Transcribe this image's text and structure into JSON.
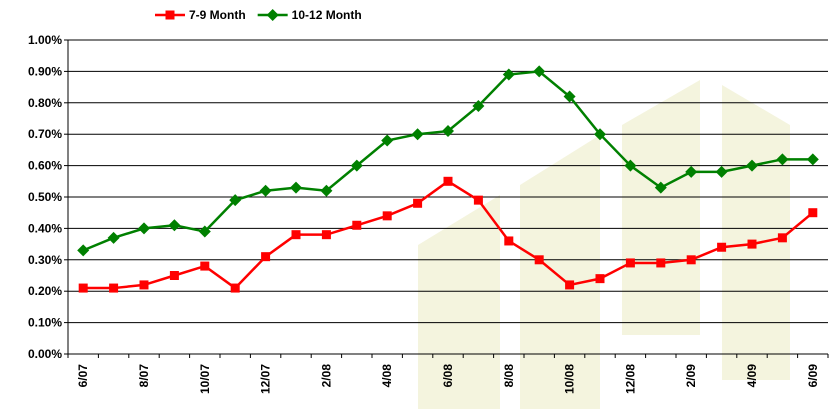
{
  "chart_data": {
    "type": "line",
    "categories": [
      "6/07",
      null,
      "8/07",
      null,
      "10/07",
      null,
      "12/07",
      null,
      "2/08",
      null,
      "4/08",
      null,
      "6/08",
      null,
      "8/08",
      null,
      "10/08",
      null,
      "12/08",
      null,
      "2/09",
      null,
      "4/09",
      null,
      "6/09"
    ],
    "series": [
      {
        "name": "7-9 Month",
        "color": "#ff0000",
        "marker": "square",
        "values": [
          0.21,
          0.21,
          0.22,
          0.25,
          0.28,
          0.21,
          0.31,
          0.38,
          0.38,
          0.41,
          0.44,
          0.48,
          0.55,
          0.49,
          0.36,
          0.3,
          0.22,
          0.24,
          0.29,
          0.29,
          0.3,
          0.34,
          0.35,
          0.37,
          0.45
        ]
      },
      {
        "name": "10-12 Month",
        "color": "#008000",
        "marker": "diamond",
        "values": [
          0.33,
          0.37,
          0.4,
          0.41,
          0.39,
          0.49,
          0.52,
          0.53,
          0.52,
          0.6,
          0.68,
          0.7,
          0.71,
          0.79,
          0.89,
          0.9,
          0.82,
          0.7,
          0.6,
          0.53,
          0.58,
          0.58,
          0.6,
          0.62,
          0.62
        ]
      }
    ],
    "ylim": [
      0,
      1
    ],
    "yticks": [
      {
        "value": 0,
        "label": "0.00%"
      },
      {
        "value": 0.1,
        "label": "0.10%"
      },
      {
        "value": 0.2,
        "label": "0.20%"
      },
      {
        "value": 0.3,
        "label": "0.30%"
      },
      {
        "value": 0.4,
        "label": "0.40%"
      },
      {
        "value": 0.5,
        "label": "0.50%"
      },
      {
        "value": 0.6,
        "label": "0.60%"
      },
      {
        "value": 0.7,
        "label": "0.70%"
      },
      {
        "value": 0.8,
        "label": "0.80%"
      },
      {
        "value": 0.9,
        "label": "0.90%"
      },
      {
        "value": 1,
        "label": "1.00%"
      }
    ],
    "grid": true,
    "legend": "top"
  }
}
